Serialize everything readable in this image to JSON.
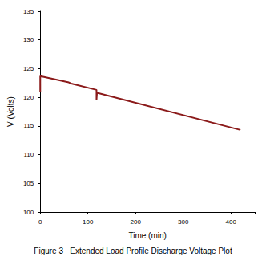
{
  "chart_data": {
    "type": "line",
    "title": "Figure 3   Extended Load Profile Discharge Voltage Plot",
    "x_label": "Time (min)",
    "y_label": "V (Volts)",
    "x": [
      0,
      0,
      60,
      65,
      118,
      118,
      119,
      420
    ],
    "values": [
      121,
      123.7,
      122.6,
      122.4,
      121.3,
      119.5,
      120.8,
      114.3
    ],
    "color": "#8b1a1a",
    "xlim": [
      0,
      450
    ],
    "xticks": [
      0,
      100,
      200,
      300,
      400
    ],
    "ylim": [
      100,
      135
    ],
    "yticks": [
      100,
      105,
      110,
      115,
      120,
      125,
      130,
      135
    ],
    "grid": false,
    "marker": "none"
  }
}
